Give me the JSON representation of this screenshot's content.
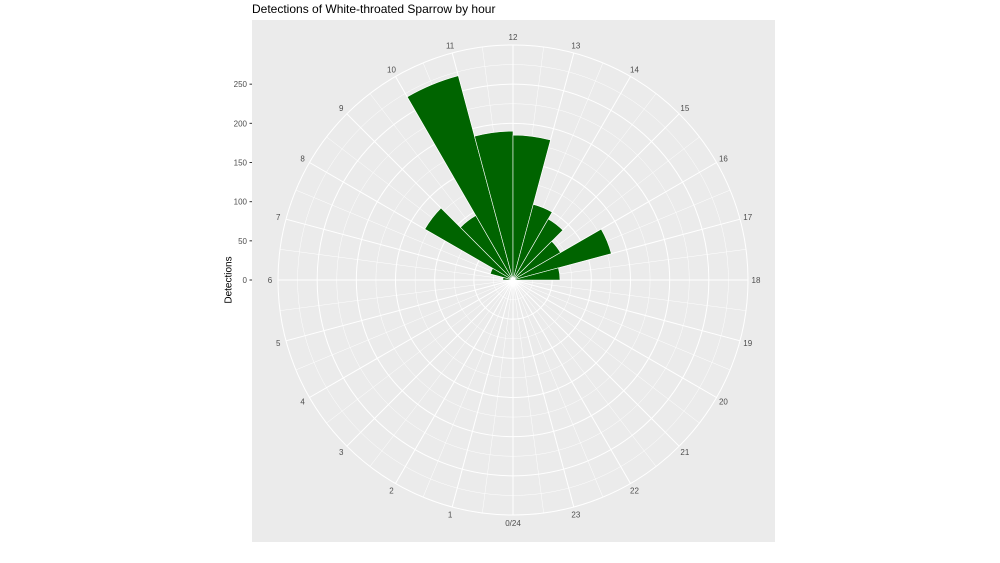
{
  "chart_data": {
    "type": "bar",
    "coord": "polar",
    "title": "Detections of White-throated Sparrow by hour",
    "ylabel": "Detections",
    "xlabel": "",
    "hours": [
      0,
      1,
      2,
      3,
      4,
      5,
      6,
      7,
      8,
      9,
      10,
      11,
      12,
      13,
      14,
      15,
      16,
      17,
      18,
      19,
      20,
      21,
      22,
      23
    ],
    "hour_labels": [
      "0/24",
      "1",
      "2",
      "3",
      "4",
      "5",
      "6",
      "7",
      "8",
      "9",
      "10",
      "11",
      "12",
      "13",
      "14",
      "15",
      "16",
      "17",
      "18",
      "19",
      "20",
      "21",
      "22",
      "23"
    ],
    "values": [
      0,
      0,
      0,
      0,
      0,
      0,
      13,
      30,
      130,
      95,
      270,
      190,
      185,
      100,
      90,
      70,
      130,
      60,
      0,
      0,
      0,
      0,
      0,
      0
    ],
    "yticks": [
      0,
      50,
      100,
      150,
      200,
      250
    ],
    "ytick_labels": [
      "0",
      "50",
      "100",
      "150",
      "200",
      "250"
    ],
    "ylim": [
      0,
      300
    ],
    "bar_color": "#006400",
    "panel_color": "#EBEBEB",
    "grid_color": "#FFFFFF",
    "grid": true,
    "legend": "none"
  }
}
